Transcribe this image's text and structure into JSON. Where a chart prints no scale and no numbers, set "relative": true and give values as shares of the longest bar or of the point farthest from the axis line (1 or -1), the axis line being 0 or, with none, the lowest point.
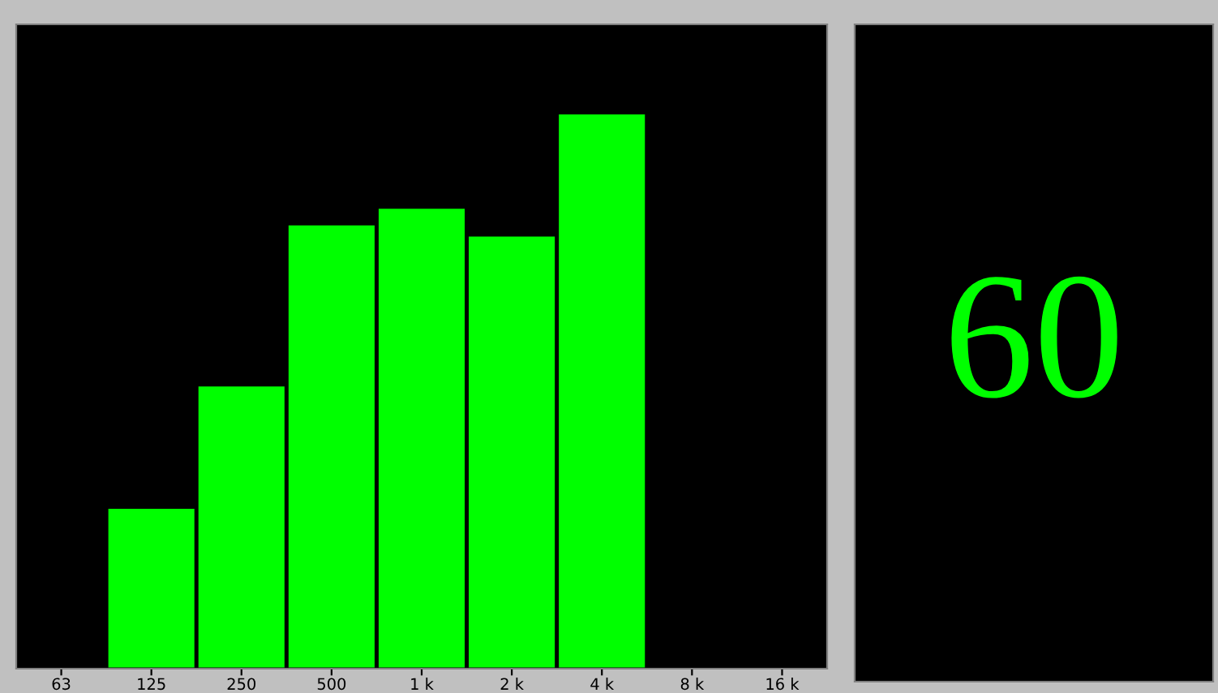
{
  "chart_data": [
    {
      "type": "bar",
      "relative": true,
      "categories": [
        "63",
        "125",
        "250",
        "500",
        "1 k",
        "2 k",
        "4 k",
        "8 k",
        "16 k"
      ],
      "values": [
        null,
        0.29,
        0.51,
        0.8,
        0.83,
        0.78,
        1,
        null,
        null
      ],
      "color": "#00ff00"
    },
    {
      "type": "other",
      "annotations": [
        "60"
      ],
      "color": "#00ff00"
    }
  ]
}
